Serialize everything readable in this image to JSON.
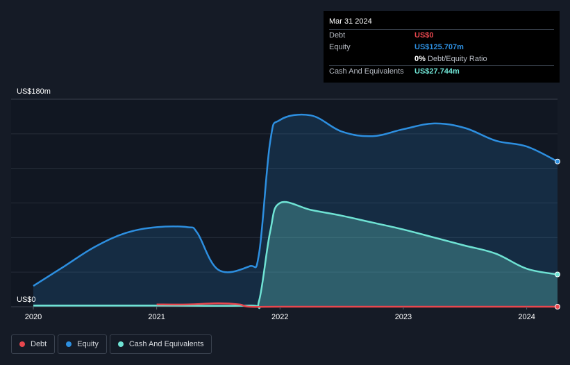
{
  "tooltip": {
    "date": "Mar 31 2024",
    "rows": [
      {
        "label": "Debt",
        "value": "US$0",
        "color": "#e8474e"
      },
      {
        "label": "Equity",
        "value": "US$125.707m",
        "color": "#2d8fe0"
      },
      {
        "label": "",
        "value": "0%",
        "suffix": "Debt/Equity Ratio",
        "color": "#ffffff"
      },
      {
        "label": "Cash And Equivalents",
        "value": "US$27.744m",
        "color": "#6fe3d4"
      }
    ]
  },
  "legend": [
    {
      "label": "Debt",
      "color": "#e8474e"
    },
    {
      "label": "Equity",
      "color": "#2d8fe0"
    },
    {
      "label": "Cash And Equivalents",
      "color": "#6fe3d4"
    }
  ],
  "chart_data": {
    "type": "area",
    "ylabel_top": "US$180m",
    "ylabel_bottom": "US$0",
    "ylim": [
      0,
      180
    ],
    "xlim": [
      2020.0,
      2024.25
    ],
    "x_ticks": [
      {
        "label": "2020",
        "value": 2020.0
      },
      {
        "label": "2021",
        "value": 2021.0
      },
      {
        "label": "2022",
        "value": 2022.0
      },
      {
        "label": "2023",
        "value": 2023.0
      },
      {
        "label": "2024",
        "value": 2024.0
      }
    ],
    "grid": true,
    "series": [
      {
        "name": "Equity",
        "color": "#2d8fe0",
        "points": [
          [
            2020.0,
            18
          ],
          [
            2020.25,
            35
          ],
          [
            2020.5,
            52
          ],
          [
            2020.75,
            64
          ],
          [
            2021.0,
            69
          ],
          [
            2021.25,
            69
          ],
          [
            2021.33,
            64
          ],
          [
            2021.5,
            32
          ],
          [
            2021.75,
            35
          ],
          [
            2021.83,
            46
          ],
          [
            2021.92,
            143
          ],
          [
            2022.0,
            162
          ],
          [
            2022.25,
            166
          ],
          [
            2022.5,
            152
          ],
          [
            2022.75,
            148
          ],
          [
            2023.0,
            154
          ],
          [
            2023.25,
            159
          ],
          [
            2023.5,
            155
          ],
          [
            2023.75,
            144
          ],
          [
            2024.0,
            139
          ],
          [
            2024.25,
            126
          ]
        ]
      },
      {
        "name": "Cash And Equivalents",
        "color": "#6fe3d4",
        "points": [
          [
            2020.0,
            1
          ],
          [
            2021.0,
            1
          ],
          [
            2021.75,
            1
          ],
          [
            2021.83,
            5
          ],
          [
            2021.92,
            65
          ],
          [
            2022.0,
            90
          ],
          [
            2022.25,
            84
          ],
          [
            2022.5,
            79
          ],
          [
            2022.75,
            73
          ],
          [
            2023.0,
            67
          ],
          [
            2023.25,
            60
          ],
          [
            2023.5,
            53
          ],
          [
            2023.75,
            46
          ],
          [
            2024.0,
            33
          ],
          [
            2024.25,
            28
          ]
        ]
      },
      {
        "name": "Debt",
        "color": "#e8474e",
        "points": [
          [
            2021.0,
            2
          ],
          [
            2021.25,
            2
          ],
          [
            2021.5,
            3
          ],
          [
            2021.67,
            2
          ],
          [
            2021.75,
            0
          ],
          [
            2022.0,
            0
          ],
          [
            2023.0,
            0
          ],
          [
            2024.0,
            0
          ],
          [
            2024.25,
            0
          ]
        ]
      }
    ]
  }
}
